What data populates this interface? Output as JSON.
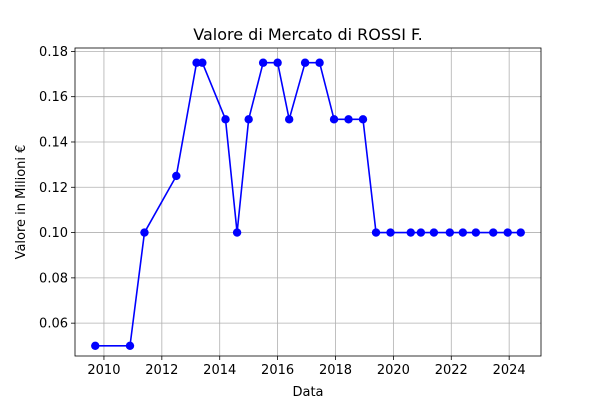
{
  "chart_data": {
    "type": "line",
    "title": "Valore di Mercato di ROSSI F.",
    "xlabel": "Data",
    "ylabel": "Valore in Milioni €",
    "xlim": [
      2009.0,
      2025.1
    ],
    "ylim": [
      0.0455,
      0.1815
    ],
    "grid": true,
    "x_ticks": [
      2010,
      2012,
      2014,
      2016,
      2018,
      2020,
      2022,
      2024
    ],
    "y_ticks": [
      0.06,
      0.08,
      0.1,
      0.12,
      0.14,
      0.16,
      0.18
    ],
    "x_tick_labels": [
      "2010",
      "2012",
      "2014",
      "2016",
      "2018",
      "2020",
      "2022",
      "2024"
    ],
    "y_tick_labels": [
      "0.06",
      "0.08",
      "0.10",
      "0.12",
      "0.14",
      "0.16",
      "0.18"
    ],
    "series": [
      {
        "color": "#0000ff",
        "marker": "circle",
        "x": [
          2009.7,
          2010.9,
          2011.4,
          2012.5,
          2013.2,
          2013.4,
          2014.2,
          2014.6,
          2015.0,
          2015.5,
          2016.0,
          2016.4,
          2016.95,
          2017.45,
          2017.95,
          2018.45,
          2018.95,
          2019.4,
          2019.9,
          2020.6,
          2020.95,
          2021.4,
          2021.95,
          2022.4,
          2022.85,
          2023.45,
          2023.95,
          2024.4
        ],
        "y": [
          0.05,
          0.05,
          0.1,
          0.125,
          0.175,
          0.175,
          0.15,
          0.1,
          0.15,
          0.175,
          0.175,
          0.15,
          0.175,
          0.175,
          0.15,
          0.15,
          0.15,
          0.1,
          0.1,
          0.1,
          0.1,
          0.1,
          0.1,
          0.1,
          0.1,
          0.1,
          0.1,
          0.1
        ]
      }
    ]
  }
}
